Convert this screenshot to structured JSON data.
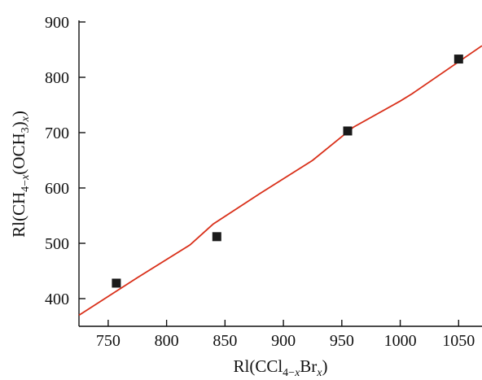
{
  "chart_data": {
    "type": "scatter",
    "xlabel": "Rl(CCl4−xBrx)",
    "ylabel": "Rl(CH4−x(OCH3)x)",
    "xlabel_parts": [
      {
        "t": "Rl(CCl",
        "style": "normal"
      },
      {
        "t": "4−",
        "style": "sub"
      },
      {
        "t": "x",
        "style": "sub-italic"
      },
      {
        "t": "Br",
        "style": "normal"
      },
      {
        "t": "x",
        "style": "sub-italic"
      },
      {
        "t": ")",
        "style": "normal"
      }
    ],
    "ylabel_parts": [
      {
        "t": "Rl(CH",
        "style": "normal"
      },
      {
        "t": "4−",
        "style": "sub"
      },
      {
        "t": "x",
        "style": "sub-italic"
      },
      {
        "t": "(OCH",
        "style": "normal"
      },
      {
        "t": "3",
        "style": "sub"
      },
      {
        "t": ")",
        "style": "normal"
      },
      {
        "t": "x",
        "style": "sub-italic"
      },
      {
        "t": ")",
        "style": "normal"
      }
    ],
    "xlim": [
      725,
      1070
    ],
    "ylim": [
      350,
      900
    ],
    "xticks": [
      750,
      800,
      850,
      900,
      950,
      1000,
      1050
    ],
    "yticks": [
      400,
      500,
      600,
      700,
      800,
      900
    ],
    "grid": false,
    "series": [
      {
        "kind": "markers",
        "marker": "square",
        "color": "#1a1a1a",
        "x": [
          757,
          843,
          955,
          1050
        ],
        "y": [
          428,
          512,
          703,
          833
        ]
      },
      {
        "kind": "line",
        "color": "#d9301a",
        "x": [
          725,
          775,
          820,
          840,
          880,
          925,
          960,
          1000,
          1010,
          1070
        ],
        "y": [
          370,
          438,
          497,
          535,
          590,
          650,
          710,
          757,
          770,
          857
        ]
      }
    ]
  }
}
